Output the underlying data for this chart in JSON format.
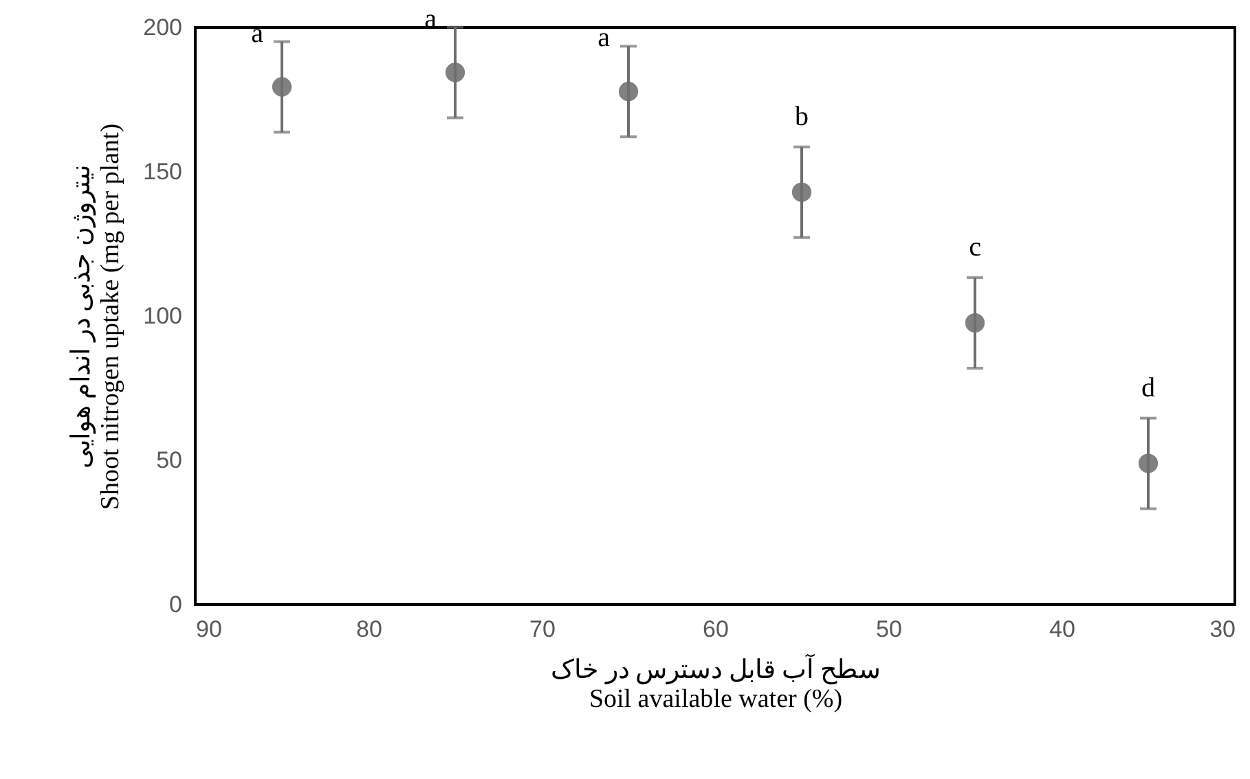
{
  "chart_data": {
    "type": "scatter",
    "xlabel": "سطح آب قابل دسترس در خاک\nSoil available water (%)",
    "ylabel": "نیتروژن جذبی در اندام هوایی\nShoot nitrogen uptake (mg per plant)",
    "x": [
      85,
      75,
      65,
      55,
      45,
      35
    ],
    "series": [
      {
        "color": "#808080",
        "values": [
          179.4,
          184.4,
          177.8,
          142.9,
          97.6,
          48.9
        ],
        "errors": [
          15.7,
          15.7,
          15.7,
          15.7,
          15.7,
          15.7
        ]
      }
    ],
    "xlim": [
      90,
      30
    ],
    "xticks": [
      90,
      80,
      70,
      60,
      50,
      40,
      30
    ],
    "ylim": [
      0,
      200
    ],
    "yticks": [
      0,
      50,
      100,
      150,
      200
    ],
    "grid": false,
    "legend": false,
    "marker": "circle",
    "annotations": [
      {
        "text": "a",
        "x": 85,
        "y": 179.4
      },
      {
        "text": "a",
        "x": 75,
        "y": 184.4
      },
      {
        "text": "a",
        "x": 65,
        "y": 177.8
      },
      {
        "text": "b",
        "x": 55,
        "y": 142.9
      },
      {
        "text": "c",
        "x": 45,
        "y": 97.6
      },
      {
        "text": "d",
        "x": 35,
        "y": 48.9
      }
    ]
  }
}
